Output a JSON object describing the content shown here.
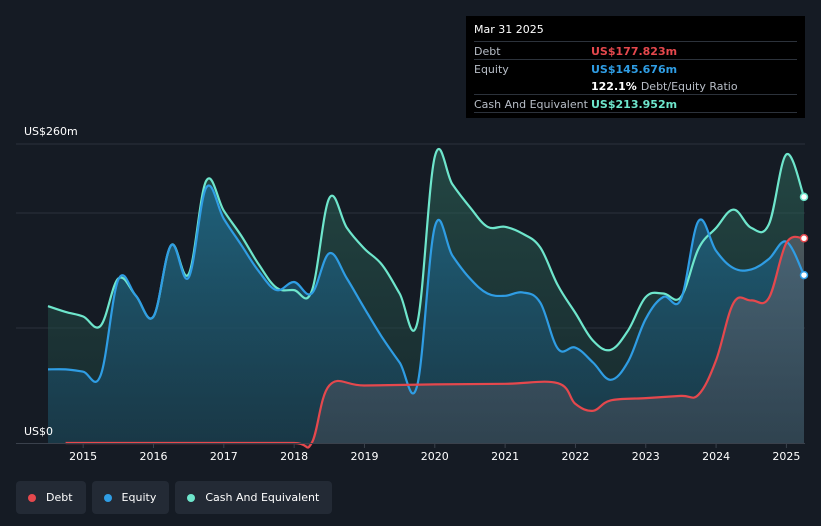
{
  "tooltip": {
    "date": "Mar 31 2025",
    "debt_label": "Debt",
    "debt_value": "US$177.823m",
    "equity_label": "Equity",
    "equity_value": "US$145.676m",
    "ratio_value": "122.1%",
    "ratio_label": "Debt/Equity Ratio",
    "cash_label": "Cash And Equivalent",
    "cash_value": "US$213.952m"
  },
  "colors": {
    "debt": "#e5484d",
    "equity": "#2f9de4",
    "cash": "#6ee6cc",
    "background": "#151b24"
  },
  "legend": [
    {
      "label": "Debt",
      "color": "#e5484d"
    },
    {
      "label": "Equity",
      "color": "#2f9de4"
    },
    {
      "label": "Cash And Equivalent",
      "color": "#6ee6cc"
    }
  ],
  "chart_data": {
    "type": "area",
    "title": "",
    "xlabel": "",
    "ylabel": "",
    "y_top_label": "US$260m",
    "y_bottom_label": "US$0",
    "ylim": [
      0,
      260
    ],
    "xlim": [
      2014.5,
      2025.25
    ],
    "x_ticks": [
      "2015",
      "2016",
      "2017",
      "2018",
      "2019",
      "2020",
      "2021",
      "2022",
      "2023",
      "2024",
      "2025"
    ],
    "grid": true,
    "legend_position": "bottom-left",
    "series": [
      {
        "name": "Debt",
        "points": [
          [
            2014.75,
            0
          ],
          [
            2015.0,
            0
          ],
          [
            2016.0,
            0
          ],
          [
            2017.0,
            0
          ],
          [
            2018.0,
            0
          ],
          [
            2018.25,
            0
          ],
          [
            2018.5,
            50
          ],
          [
            2019.0,
            50
          ],
          [
            2020.0,
            51
          ],
          [
            2021.0,
            51.5
          ],
          [
            2021.75,
            52
          ],
          [
            2022.0,
            34
          ],
          [
            2022.25,
            28
          ],
          [
            2022.5,
            37
          ],
          [
            2023.0,
            39
          ],
          [
            2023.5,
            41
          ],
          [
            2023.75,
            42
          ],
          [
            2024.0,
            72
          ],
          [
            2024.25,
            122
          ],
          [
            2024.5,
            124
          ],
          [
            2024.75,
            126
          ],
          [
            2025.0,
            174
          ],
          [
            2025.25,
            178
          ]
        ]
      },
      {
        "name": "Equity",
        "points": [
          [
            2014.5,
            64
          ],
          [
            2014.75,
            64
          ],
          [
            2015.0,
            62
          ],
          [
            2015.25,
            59
          ],
          [
            2015.5,
            142
          ],
          [
            2015.75,
            128
          ],
          [
            2016.0,
            110
          ],
          [
            2016.25,
            172
          ],
          [
            2016.5,
            144
          ],
          [
            2016.75,
            222
          ],
          [
            2017.0,
            195
          ],
          [
            2017.25,
            172
          ],
          [
            2017.5,
            149
          ],
          [
            2017.75,
            133
          ],
          [
            2018.0,
            140
          ],
          [
            2018.25,
            130
          ],
          [
            2018.5,
            165
          ],
          [
            2018.75,
            143
          ],
          [
            2019.0,
            117
          ],
          [
            2019.25,
            92
          ],
          [
            2019.5,
            70
          ],
          [
            2019.75,
            50
          ],
          [
            2020.0,
            188
          ],
          [
            2020.25,
            163
          ],
          [
            2020.5,
            143
          ],
          [
            2020.75,
            130
          ],
          [
            2021.0,
            128
          ],
          [
            2021.25,
            131
          ],
          [
            2021.5,
            122
          ],
          [
            2021.75,
            82
          ],
          [
            2022.0,
            83
          ],
          [
            2022.25,
            70
          ],
          [
            2022.5,
            55
          ],
          [
            2022.75,
            71
          ],
          [
            2023.0,
            108
          ],
          [
            2023.25,
            127
          ],
          [
            2023.5,
            125
          ],
          [
            2023.75,
            193
          ],
          [
            2024.0,
            167
          ],
          [
            2024.25,
            152
          ],
          [
            2024.5,
            151
          ],
          [
            2024.75,
            160
          ],
          [
            2025.0,
            175
          ],
          [
            2025.25,
            146
          ]
        ]
      },
      {
        "name": "Cash And Equivalent",
        "points": [
          [
            2014.5,
            119
          ],
          [
            2014.75,
            114
          ],
          [
            2015.0,
            110
          ],
          [
            2015.25,
            102
          ],
          [
            2015.5,
            143
          ],
          [
            2015.75,
            128
          ],
          [
            2016.0,
            110
          ],
          [
            2016.25,
            172
          ],
          [
            2016.5,
            147
          ],
          [
            2016.75,
            228
          ],
          [
            2017.0,
            202
          ],
          [
            2017.25,
            180
          ],
          [
            2017.5,
            155
          ],
          [
            2017.75,
            135
          ],
          [
            2018.0,
            133
          ],
          [
            2018.25,
            132
          ],
          [
            2018.5,
            213
          ],
          [
            2018.75,
            187
          ],
          [
            2019.0,
            169
          ],
          [
            2019.25,
            155
          ],
          [
            2019.5,
            130
          ],
          [
            2019.75,
            104
          ],
          [
            2020.0,
            249
          ],
          [
            2020.25,
            225
          ],
          [
            2020.5,
            205
          ],
          [
            2020.75,
            188
          ],
          [
            2021.0,
            188
          ],
          [
            2021.25,
            182
          ],
          [
            2021.5,
            170
          ],
          [
            2021.75,
            137
          ],
          [
            2022.0,
            113
          ],
          [
            2022.25,
            89
          ],
          [
            2022.5,
            81
          ],
          [
            2022.75,
            98
          ],
          [
            2023.0,
            127
          ],
          [
            2023.25,
            130
          ],
          [
            2023.5,
            127
          ],
          [
            2023.75,
            169
          ],
          [
            2024.0,
            187
          ],
          [
            2024.25,
            203
          ],
          [
            2024.5,
            187
          ],
          [
            2024.75,
            190
          ],
          [
            2025.0,
            251
          ],
          [
            2025.25,
            214
          ]
        ]
      }
    ]
  }
}
